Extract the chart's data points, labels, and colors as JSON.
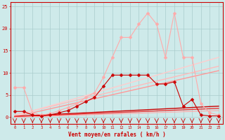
{
  "bg_color": "#ceeaea",
  "grid_color": "#aacccc",
  "xlabel": "Vent moyen/en rafales ( km/h )",
  "xlabel_color": "#cc0000",
  "tick_color": "#cc0000",
  "xlim": [
    -0.5,
    23.5
  ],
  "ylim": [
    -1.5,
    26
  ],
  "yticks": [
    0,
    5,
    10,
    15,
    20,
    25
  ],
  "xticks": [
    0,
    1,
    2,
    3,
    4,
    5,
    6,
    7,
    8,
    9,
    10,
    11,
    12,
    13,
    14,
    15,
    16,
    17,
    18,
    19,
    20,
    21,
    22,
    23
  ],
  "series": [
    {
      "x": [
        0,
        1,
        2,
        3,
        4,
        5,
        6,
        7,
        8,
        9,
        10,
        11,
        12,
        13,
        14,
        15,
        16,
        17,
        18,
        19,
        20,
        21,
        22,
        23
      ],
      "y": [
        6.7,
        6.7,
        1.0,
        0.5,
        0.8,
        1.5,
        2.2,
        3.0,
        4.5,
        5.5,
        9.0,
        13.5,
        18.0,
        18.0,
        21.0,
        23.5,
        21.0,
        13.5,
        23.5,
        13.5,
        13.5,
        3.0,
        1.0,
        0.5
      ],
      "color": "#ffaaaa",
      "linewidth": 0.8,
      "marker": "D",
      "markersize": 2.5
    },
    {
      "x": [
        0,
        1,
        2,
        3,
        4,
        5,
        6,
        7,
        8,
        9,
        10,
        11,
        12,
        13,
        14,
        15,
        16,
        17,
        18,
        19,
        20,
        21,
        22,
        23
      ],
      "y": [
        1.3,
        1.3,
        0.5,
        0.3,
        0.5,
        1.0,
        1.5,
        2.5,
        3.5,
        4.5,
        7.0,
        9.5,
        9.5,
        9.5,
        9.5,
        9.5,
        7.5,
        7.5,
        8.0,
        2.5,
        4.0,
        0.5,
        0.3,
        0.3
      ],
      "color": "#cc0000",
      "linewidth": 0.8,
      "marker": "D",
      "markersize": 2.5
    },
    {
      "x": [
        0,
        23
      ],
      "y": [
        0.5,
        11.5
      ],
      "color": "#ffbbbb",
      "linewidth": 1.0,
      "marker": null,
      "markersize": 0
    },
    {
      "x": [
        0,
        23
      ],
      "y": [
        0.3,
        13.5
      ],
      "color": "#ffcccc",
      "linewidth": 1.0,
      "marker": null,
      "markersize": 0
    },
    {
      "x": [
        0,
        23
      ],
      "y": [
        0.1,
        10.5
      ],
      "color": "#ff9999",
      "linewidth": 1.0,
      "marker": null,
      "markersize": 0
    },
    {
      "x": [
        0,
        23
      ],
      "y": [
        0.2,
        2.5
      ],
      "color": "#cc0000",
      "linewidth": 1.0,
      "marker": null,
      "markersize": 0
    },
    {
      "x": [
        0,
        23
      ],
      "y": [
        0.1,
        2.0
      ],
      "color": "#ee3333",
      "linewidth": 1.0,
      "marker": null,
      "markersize": 0
    },
    {
      "x": [
        0,
        23
      ],
      "y": [
        0.0,
        1.5
      ],
      "color": "#ffaaaa",
      "linewidth": 0.8,
      "marker": null,
      "markersize": 0
    }
  ],
  "wind_arrows": {
    "x": [
      0,
      1,
      2,
      3,
      4,
      5,
      6,
      7,
      8,
      9,
      10,
      11,
      12,
      13,
      14,
      15,
      16,
      17,
      18,
      19,
      20,
      21,
      22,
      23
    ],
    "y": -1.0,
    "color": "#cc0000",
    "size": 4
  }
}
